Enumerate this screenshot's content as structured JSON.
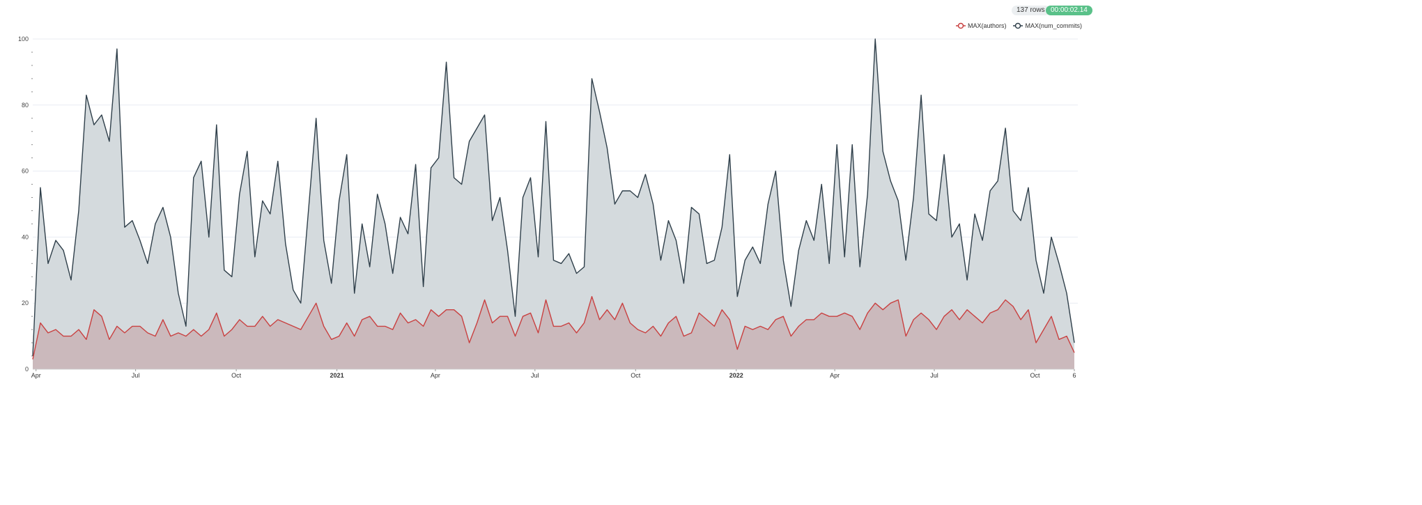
{
  "header": {
    "rows_label": "137 rows",
    "timer_label": "00:00:02.14",
    "timer_color": "#5ac189"
  },
  "chart_data": {
    "type": "area",
    "title": "",
    "xlabel": "",
    "ylabel": "",
    "ylim": [
      0,
      100
    ],
    "yticks": [
      0,
      20,
      40,
      60,
      80,
      100
    ],
    "grid": true,
    "legend_position": "top-right",
    "xticks": [
      {
        "date": "2020-04-01",
        "label": "Apr",
        "bold": false
      },
      {
        "date": "2020-07-01",
        "label": "Jul",
        "bold": false
      },
      {
        "date": "2020-10-01",
        "label": "Oct",
        "bold": false
      },
      {
        "date": "2021-01-01",
        "label": "2021",
        "bold": true
      },
      {
        "date": "2021-04-01",
        "label": "Apr",
        "bold": false
      },
      {
        "date": "2021-07-01",
        "label": "Jul",
        "bold": false
      },
      {
        "date": "2021-10-01",
        "label": "Oct",
        "bold": false
      },
      {
        "date": "2022-01-01",
        "label": "2022",
        "bold": true
      },
      {
        "date": "2022-04-01",
        "label": "Apr",
        "bold": false
      },
      {
        "date": "2022-07-01",
        "label": "Jul",
        "bold": false
      },
      {
        "date": "2022-10-01",
        "label": "Oct",
        "bold": false
      },
      {
        "date": "2022-11-06",
        "label": "6",
        "bold": false
      }
    ],
    "x": [
      "2020-03-29",
      "2020-04-05",
      "2020-04-12",
      "2020-04-19",
      "2020-04-26",
      "2020-05-03",
      "2020-05-10",
      "2020-05-17",
      "2020-05-24",
      "2020-05-31",
      "2020-06-07",
      "2020-06-14",
      "2020-06-21",
      "2020-06-28",
      "2020-07-05",
      "2020-07-12",
      "2020-07-19",
      "2020-07-26",
      "2020-08-02",
      "2020-08-09",
      "2020-08-16",
      "2020-08-23",
      "2020-08-30",
      "2020-09-06",
      "2020-09-13",
      "2020-09-20",
      "2020-09-27",
      "2020-10-04",
      "2020-10-11",
      "2020-10-18",
      "2020-10-25",
      "2020-11-01",
      "2020-11-08",
      "2020-11-15",
      "2020-11-22",
      "2020-11-29",
      "2020-12-06",
      "2020-12-13",
      "2020-12-20",
      "2020-12-27",
      "2021-01-03",
      "2021-01-10",
      "2021-01-17",
      "2021-01-24",
      "2021-01-31",
      "2021-02-07",
      "2021-02-14",
      "2021-02-21",
      "2021-02-28",
      "2021-03-07",
      "2021-03-14",
      "2021-03-21",
      "2021-03-28",
      "2021-04-04",
      "2021-04-11",
      "2021-04-18",
      "2021-04-25",
      "2021-05-02",
      "2021-05-09",
      "2021-05-16",
      "2021-05-23",
      "2021-05-30",
      "2021-06-06",
      "2021-06-13",
      "2021-06-20",
      "2021-06-27",
      "2021-07-04",
      "2021-07-11",
      "2021-07-18",
      "2021-07-25",
      "2021-08-01",
      "2021-08-08",
      "2021-08-15",
      "2021-08-22",
      "2021-08-29",
      "2021-09-05",
      "2021-09-12",
      "2021-09-19",
      "2021-09-26",
      "2021-10-03",
      "2021-10-10",
      "2021-10-17",
      "2021-10-24",
      "2021-10-31",
      "2021-11-07",
      "2021-11-14",
      "2021-11-21",
      "2021-11-28",
      "2021-12-05",
      "2021-12-12",
      "2021-12-19",
      "2021-12-26",
      "2022-01-02",
      "2022-01-09",
      "2022-01-16",
      "2022-01-23",
      "2022-01-30",
      "2022-02-06",
      "2022-02-13",
      "2022-02-20",
      "2022-02-27",
      "2022-03-06",
      "2022-03-13",
      "2022-03-20",
      "2022-03-27",
      "2022-04-03",
      "2022-04-10",
      "2022-04-17",
      "2022-04-24",
      "2022-05-01",
      "2022-05-08",
      "2022-05-15",
      "2022-05-22",
      "2022-05-29",
      "2022-06-05",
      "2022-06-12",
      "2022-06-19",
      "2022-06-26",
      "2022-07-03",
      "2022-07-10",
      "2022-07-17",
      "2022-07-24",
      "2022-07-31",
      "2022-08-07",
      "2022-08-14",
      "2022-08-21",
      "2022-08-28",
      "2022-09-04",
      "2022-09-11",
      "2022-09-18",
      "2022-09-25",
      "2022-10-02",
      "2022-10-09",
      "2022-10-16",
      "2022-10-23",
      "2022-10-30",
      "2022-11-06"
    ],
    "series": [
      {
        "name": "MAX(num_commits)",
        "line_color": "#2f3f4a",
        "fill_color": "#d4dadd",
        "values": [
          4,
          55,
          32,
          39,
          36,
          27,
          48,
          83,
          74,
          77,
          69,
          97,
          43,
          45,
          39,
          32,
          44,
          49,
          40,
          23,
          13,
          58,
          63,
          40,
          74,
          30,
          28,
          53,
          66,
          34,
          51,
          47,
          63,
          38,
          24,
          20,
          48,
          76,
          39,
          26,
          51,
          65,
          23,
          44,
          31,
          53,
          44,
          29,
          46,
          41,
          62,
          25,
          61,
          64,
          93,
          58,
          56,
          69,
          73,
          77,
          45,
          52,
          36,
          16,
          52,
          58,
          34,
          75,
          33,
          32,
          35,
          29,
          31,
          88,
          78,
          67,
          50,
          54,
          54,
          52,
          59,
          50,
          33,
          45,
          39,
          26,
          49,
          47,
          32,
          33,
          43,
          65,
          22,
          33,
          37,
          32,
          50,
          60,
          33,
          19,
          36,
          45,
          39,
          56,
          32,
          68,
          34,
          68,
          31,
          53,
          100,
          66,
          57,
          51,
          33,
          52,
          83,
          47,
          45,
          65,
          40,
          44,
          27,
          47,
          39,
          54,
          57,
          73,
          48,
          45,
          55,
          33,
          23,
          40,
          32,
          23,
          8
        ]
      },
      {
        "name": "MAX(authors)",
        "line_color": "#c94040",
        "fill_color": "#cbb9bc",
        "values": [
          3,
          14,
          11,
          12,
          10,
          10,
          12,
          9,
          18,
          16,
          9,
          13,
          11,
          13,
          13,
          11,
          10,
          15,
          10,
          11,
          10,
          12,
          10,
          12,
          17,
          10,
          12,
          15,
          13,
          13,
          16,
          13,
          15,
          14,
          13,
          12,
          16,
          20,
          13,
          9,
          10,
          14,
          10,
          15,
          16,
          13,
          13,
          12,
          17,
          14,
          15,
          13,
          18,
          16,
          18,
          18,
          16,
          8,
          14,
          21,
          14,
          16,
          16,
          10,
          16,
          17,
          11,
          21,
          13,
          13,
          14,
          11,
          14,
          22,
          15,
          18,
          15,
          20,
          14,
          12,
          11,
          13,
          10,
          14,
          16,
          10,
          11,
          17,
          15,
          13,
          18,
          15,
          6,
          13,
          12,
          13,
          12,
          15,
          16,
          10,
          13,
          15,
          15,
          17,
          16,
          16,
          17,
          16,
          12,
          17,
          20,
          18,
          20,
          21,
          10,
          15,
          17,
          15,
          12,
          16,
          18,
          15,
          18,
          16,
          14,
          17,
          18,
          21,
          19,
          15,
          18,
          8,
          12,
          16,
          9,
          10,
          5
        ]
      }
    ]
  }
}
